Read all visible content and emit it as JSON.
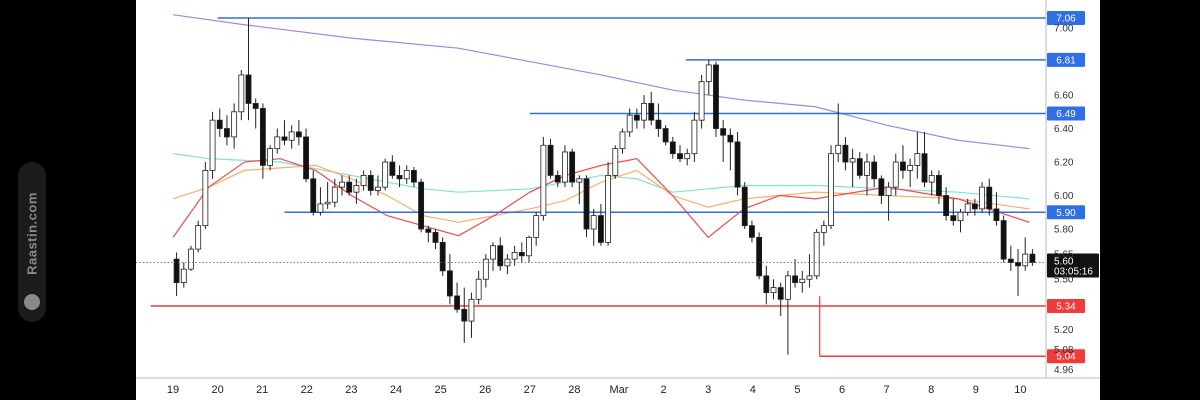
{
  "watermark": {
    "text": "Raastin.com",
    "icon": "raastin-logo-icon"
  },
  "colors": {
    "up": "#ffffff",
    "down": "#111111",
    "wick": "#222222",
    "support": "#ef3b3b",
    "resistance": "#2f6fe4",
    "ma_long": "#9b8ae6",
    "ma_mid": "#7fe3d6",
    "ma_short": "#f6b06a",
    "ma_fast": "#ef4d4d"
  },
  "chart_data": {
    "type": "candlestick",
    "x_ticks": [
      "19",
      "20",
      "21",
      "22",
      "23",
      "24",
      "25",
      "26",
      "27",
      "28",
      "Mar",
      "2",
      "3",
      "4",
      "5",
      "6",
      "7",
      "8",
      "9",
      "10"
    ],
    "y_ticks": [
      7.0,
      6.6,
      6.4,
      6.2,
      6.0,
      5.8,
      5.65,
      5.5,
      5.2,
      5.08,
      4.96
    ],
    "y_range": [
      4.91,
      7.12
    ],
    "current_price": {
      "label": "5.60",
      "countdown": "03:05:16"
    },
    "levels": [
      {
        "label": "7.06",
        "value": 7.06,
        "kind": "resistance",
        "start_day": 1.0
      },
      {
        "label": "6.81",
        "value": 6.81,
        "kind": "resistance",
        "start_day": 11.5
      },
      {
        "label": "6.49",
        "value": 6.49,
        "kind": "resistance",
        "start_day": 8.0
      },
      {
        "label": "5.90",
        "value": 5.9,
        "kind": "resistance",
        "start_day": 2.5
      },
      {
        "label": "5.34",
        "value": 5.34,
        "kind": "support",
        "start_day": -0.5
      },
      {
        "label": "5.04",
        "value": 5.04,
        "kind": "support",
        "start_day": 14.5
      }
    ],
    "ohlc": [
      [
        5.62,
        5.66,
        5.4,
        5.48
      ],
      [
        5.48,
        5.6,
        5.45,
        5.56
      ],
      [
        5.56,
        5.7,
        5.55,
        5.68
      ],
      [
        5.68,
        5.85,
        5.66,
        5.82
      ],
      [
        5.82,
        6.2,
        5.8,
        6.15
      ],
      [
        6.15,
        6.5,
        6.1,
        6.45
      ],
      [
        6.45,
        6.52,
        6.35,
        6.4
      ],
      [
        6.4,
        6.48,
        6.3,
        6.35
      ],
      [
        6.35,
        6.55,
        6.28,
        6.5
      ],
      [
        6.5,
        6.75,
        6.45,
        6.72
      ],
      [
        6.72,
        7.06,
        6.45,
        6.55
      ],
      [
        6.55,
        6.58,
        6.4,
        6.52
      ],
      [
        6.52,
        6.55,
        6.1,
        6.18
      ],
      [
        6.18,
        6.3,
        6.15,
        6.28
      ],
      [
        6.28,
        6.4,
        6.25,
        6.35
      ],
      [
        6.35,
        6.45,
        6.3,
        6.33
      ],
      [
        6.33,
        6.42,
        6.28,
        6.38
      ],
      [
        6.38,
        6.45,
        6.3,
        6.35
      ],
      [
        6.35,
        6.4,
        6.08,
        6.1
      ],
      [
        6.1,
        6.15,
        5.88,
        5.9
      ],
      [
        5.9,
        6.05,
        5.88,
        5.95
      ],
      [
        5.95,
        6.08,
        5.92,
        5.96
      ],
      [
        5.96,
        6.1,
        5.93,
        6.05
      ],
      [
        6.05,
        6.12,
        6.0,
        6.08
      ],
      [
        6.08,
        6.12,
        6.0,
        6.02
      ],
      [
        6.02,
        6.1,
        5.95,
        6.06
      ],
      [
        6.06,
        6.15,
        6.03,
        6.12
      ],
      [
        6.12,
        6.15,
        6.0,
        6.03
      ],
      [
        6.03,
        6.12,
        6.0,
        6.05
      ],
      [
        6.05,
        6.22,
        6.03,
        6.2
      ],
      [
        6.2,
        6.24,
        6.1,
        6.12
      ],
      [
        6.12,
        6.18,
        6.05,
        6.1
      ],
      [
        6.1,
        6.18,
        6.07,
        6.15
      ],
      [
        6.15,
        6.17,
        6.05,
        6.08
      ],
      [
        6.08,
        6.1,
        5.78,
        5.8
      ],
      [
        5.8,
        5.82,
        5.72,
        5.78
      ],
      [
        5.78,
        5.8,
        5.68,
        5.72
      ],
      [
        5.72,
        5.75,
        5.52,
        5.55
      ],
      [
        5.55,
        5.65,
        5.35,
        5.4
      ],
      [
        5.4,
        5.48,
        5.3,
        5.32
      ],
      [
        5.32,
        5.45,
        5.12,
        5.25
      ],
      [
        5.25,
        5.42,
        5.15,
        5.38
      ],
      [
        5.38,
        5.55,
        5.35,
        5.5
      ],
      [
        5.5,
        5.65,
        5.45,
        5.62
      ],
      [
        5.62,
        5.72,
        5.55,
        5.7
      ],
      [
        5.7,
        5.75,
        5.55,
        5.58
      ],
      [
        5.58,
        5.65,
        5.53,
        5.62
      ],
      [
        5.62,
        5.7,
        5.58,
        5.66
      ],
      [
        5.66,
        5.72,
        5.6,
        5.64
      ],
      [
        5.64,
        5.76,
        5.6,
        5.75
      ],
      [
        5.75,
        5.9,
        5.7,
        5.88
      ],
      [
        5.88,
        6.35,
        5.85,
        6.3
      ],
      [
        6.3,
        6.34,
        6.1,
        6.12
      ],
      [
        6.12,
        6.15,
        6.05,
        6.08
      ],
      [
        6.08,
        6.3,
        6.05,
        6.26
      ],
      [
        6.26,
        6.28,
        6.05,
        6.08
      ],
      [
        6.08,
        6.12,
        5.95,
        6.1
      ],
      [
        6.1,
        6.12,
        5.75,
        5.8
      ],
      [
        5.8,
        5.92,
        5.7,
        5.88
      ],
      [
        5.88,
        5.95,
        5.7,
        5.72
      ],
      [
        5.72,
        6.2,
        5.7,
        6.12
      ],
      [
        6.12,
        6.3,
        6.1,
        6.28
      ],
      [
        6.28,
        6.4,
        6.25,
        6.38
      ],
      [
        6.38,
        6.52,
        6.35,
        6.48
      ],
      [
        6.48,
        6.52,
        6.4,
        6.45
      ],
      [
        6.45,
        6.6,
        6.4,
        6.55
      ],
      [
        6.55,
        6.62,
        6.42,
        6.45
      ],
      [
        6.45,
        6.55,
        6.35,
        6.4
      ],
      [
        6.4,
        6.42,
        6.3,
        6.32
      ],
      [
        6.32,
        6.35,
        6.22,
        6.25
      ],
      [
        6.25,
        6.3,
        6.2,
        6.22
      ],
      [
        6.22,
        6.28,
        6.18,
        6.25
      ],
      [
        6.25,
        6.5,
        6.2,
        6.45
      ],
      [
        6.45,
        6.72,
        6.4,
        6.68
      ],
      [
        6.68,
        6.81,
        6.6,
        6.78
      ],
      [
        6.78,
        6.8,
        6.35,
        6.4
      ],
      [
        6.4,
        6.45,
        6.2,
        6.36
      ],
      [
        6.36,
        6.4,
        6.15,
        6.32
      ],
      [
        6.32,
        6.38,
        6.0,
        6.05
      ],
      [
        6.05,
        6.08,
        5.8,
        5.82
      ],
      [
        5.82,
        5.85,
        5.72,
        5.75
      ],
      [
        5.75,
        5.78,
        5.5,
        5.52
      ],
      [
        5.52,
        5.58,
        5.35,
        5.42
      ],
      [
        5.42,
        5.5,
        5.38,
        5.45
      ],
      [
        5.45,
        5.48,
        5.28,
        5.38
      ],
      [
        5.38,
        5.55,
        5.05,
        5.52
      ],
      [
        5.52,
        5.62,
        5.45,
        5.48
      ],
      [
        5.48,
        5.55,
        5.42,
        5.5
      ],
      [
        5.5,
        5.65,
        5.45,
        5.52
      ],
      [
        5.52,
        5.8,
        5.5,
        5.78
      ],
      [
        5.78,
        5.85,
        5.7,
        5.82
      ],
      [
        5.82,
        6.3,
        5.8,
        6.25
      ],
      [
        6.25,
        6.55,
        6.2,
        6.3
      ],
      [
        6.3,
        6.35,
        6.15,
        6.2
      ],
      [
        6.2,
        6.28,
        6.05,
        6.22
      ],
      [
        6.22,
        6.26,
        6.1,
        6.12
      ],
      [
        6.12,
        6.25,
        6.0,
        6.2
      ],
      [
        6.2,
        6.24,
        6.05,
        6.1
      ],
      [
        6.1,
        6.12,
        5.95,
        6.0
      ],
      [
        6.0,
        6.08,
        5.85,
        6.05
      ],
      [
        6.05,
        6.25,
        6.0,
        6.2
      ],
      [
        6.2,
        6.3,
        6.1,
        6.15
      ],
      [
        6.15,
        6.22,
        6.05,
        6.18
      ],
      [
        6.18,
        6.38,
        6.1,
        6.25
      ],
      [
        6.25,
        6.38,
        6.05,
        6.08
      ],
      [
        6.08,
        6.15,
        6.0,
        6.12
      ],
      [
        6.12,
        6.15,
        5.95,
        6.0
      ],
      [
        6.0,
        6.05,
        5.85,
        5.88
      ],
      [
        5.88,
        5.98,
        5.82,
        5.85
      ],
      [
        5.85,
        5.92,
        5.78,
        5.9
      ],
      [
        5.9,
        5.98,
        5.88,
        5.95
      ],
      [
        5.95,
        5.98,
        5.88,
        5.92
      ],
      [
        5.92,
        6.08,
        5.9,
        6.05
      ],
      [
        6.05,
        6.1,
        5.88,
        5.92
      ],
      [
        5.92,
        6.02,
        5.82,
        5.85
      ],
      [
        5.85,
        5.88,
        5.6,
        5.62
      ],
      [
        5.62,
        5.7,
        5.55,
        5.6
      ],
      [
        5.6,
        5.68,
        5.4,
        5.58
      ],
      [
        5.58,
        5.75,
        5.55,
        5.65
      ],
      [
        5.65,
        5.68,
        5.58,
        5.6
      ]
    ],
    "ma": [
      {
        "key": "ma_long",
        "points": [
          [
            0,
            7.08
          ],
          [
            2,
            7.02
          ],
          [
            5,
            6.94
          ],
          [
            8,
            6.88
          ],
          [
            10,
            6.8
          ],
          [
            12,
            6.72
          ],
          [
            14,
            6.63
          ],
          [
            16,
            6.57
          ],
          [
            18,
            6.53
          ],
          [
            20,
            6.42
          ],
          [
            22,
            6.33
          ],
          [
            24,
            6.28
          ]
        ]
      },
      {
        "key": "ma_mid",
        "points": [
          [
            0,
            6.25
          ],
          [
            1,
            6.22
          ],
          [
            3,
            6.2
          ],
          [
            5,
            6.12
          ],
          [
            7,
            6.04
          ],
          [
            8,
            6.02
          ],
          [
            10,
            6.04
          ],
          [
            12,
            6.12
          ],
          [
            13,
            6.1
          ],
          [
            14,
            6.02
          ],
          [
            16,
            6.06
          ],
          [
            18,
            6.06
          ],
          [
            20,
            6.04
          ],
          [
            22,
            6.02
          ],
          [
            24,
            5.98
          ]
        ]
      },
      {
        "key": "ma_short",
        "points": [
          [
            0,
            5.98
          ],
          [
            1,
            6.05
          ],
          [
            2,
            6.15
          ],
          [
            4,
            6.18
          ],
          [
            5,
            6.1
          ],
          [
            6,
            6.0
          ],
          [
            7,
            5.88
          ],
          [
            8,
            5.84
          ],
          [
            9,
            5.88
          ],
          [
            10,
            5.92
          ],
          [
            11,
            5.97
          ],
          [
            12,
            6.08
          ],
          [
            13,
            6.15
          ],
          [
            14,
            6.0
          ],
          [
            15,
            5.93
          ],
          [
            16,
            5.98
          ],
          [
            18,
            6.02
          ],
          [
            20,
            6.0
          ],
          [
            22,
            5.98
          ],
          [
            24,
            5.92
          ]
        ]
      },
      {
        "key": "ma_fast",
        "points": [
          [
            0,
            5.75
          ],
          [
            1,
            6.05
          ],
          [
            2,
            6.2
          ],
          [
            3,
            6.22
          ],
          [
            4,
            6.15
          ],
          [
            5,
            6.0
          ],
          [
            6,
            5.88
          ],
          [
            7,
            5.82
          ],
          [
            8,
            5.76
          ],
          [
            9,
            5.88
          ],
          [
            10,
            6.02
          ],
          [
            11,
            6.12
          ],
          [
            12,
            6.18
          ],
          [
            13,
            6.22
          ],
          [
            14,
            6.0
          ],
          [
            15,
            5.75
          ],
          [
            16,
            5.92
          ],
          [
            17,
            6.0
          ],
          [
            18,
            5.98
          ],
          [
            20,
            6.05
          ],
          [
            22,
            5.98
          ],
          [
            24,
            5.84
          ]
        ]
      }
    ]
  }
}
